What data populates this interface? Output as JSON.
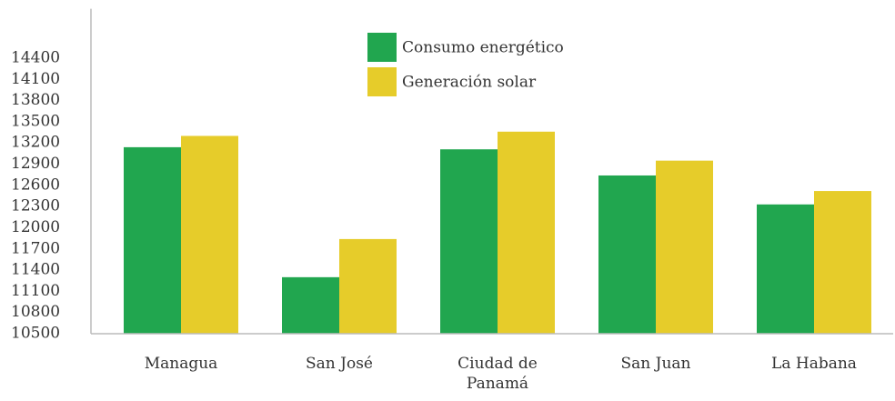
{
  "chart_data": {
    "type": "bar",
    "categories": [
      "Managua",
      "San José",
      "Ciudad de Panamá",
      "San Juan",
      "La Habana"
    ],
    "series": [
      {
        "name": "Consumo energético",
        "color": "#21a64f",
        "values": [
          13140,
          11300,
          13110,
          12740,
          12330
        ]
      },
      {
        "name": "Generación solar",
        "color": "#e6cc2a",
        "values": [
          13300,
          11840,
          13360,
          12950,
          12520
        ]
      }
    ],
    "ylim": [
      10500,
      15100
    ],
    "yticks": [
      10500,
      10800,
      11100,
      11400,
      11700,
      12000,
      12300,
      12600,
      12900,
      13200,
      13500,
      13800,
      14100,
      14400
    ],
    "grid": false,
    "legend": "top-center"
  }
}
